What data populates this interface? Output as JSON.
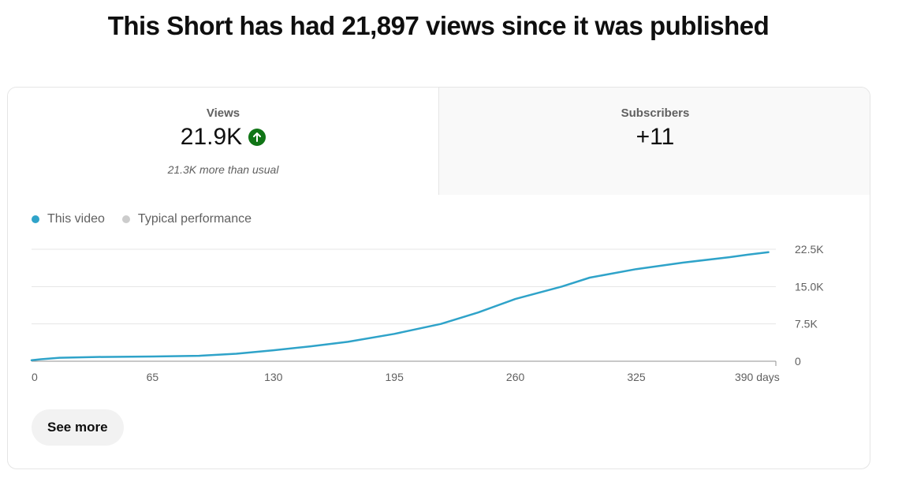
{
  "header": {
    "title": "This Short has had 21,897 views since it was published"
  },
  "metrics": {
    "views": {
      "label": "Views",
      "value": "21.9K",
      "note": "21.3K more than usual",
      "trend_icon": "arrow-up-icon",
      "trend_color": "#107516"
    },
    "subscribers": {
      "label": "Subscribers",
      "value": "+11"
    }
  },
  "legend": {
    "this_video": {
      "label": "This video",
      "color": "#2fa3c9"
    },
    "typical": {
      "label": "Typical performance",
      "color": "#cccccc"
    }
  },
  "actions": {
    "see_more_label": "See more"
  },
  "chart_data": {
    "type": "line",
    "x_unit": "days",
    "xlim": [
      0,
      400
    ],
    "ylim": [
      0,
      22500
    ],
    "x_ticks": [
      0,
      65,
      130,
      195,
      260,
      325,
      390
    ],
    "x_tick_labels": [
      "0",
      "65",
      "130",
      "195",
      "260",
      "325",
      "390 days"
    ],
    "y_ticks": [
      0,
      7500,
      15000,
      22500
    ],
    "y_tick_labels": [
      "0",
      "7.5K",
      "15.0K",
      "22.5K"
    ],
    "grid": true,
    "series": [
      {
        "name": "This video",
        "color": "#2fa3c9",
        "x": [
          0,
          5,
          15,
          35,
          65,
          90,
          110,
          130,
          150,
          170,
          195,
          220,
          240,
          260,
          285,
          300,
          325,
          350,
          375,
          385,
          396
        ],
        "y": [
          200,
          400,
          700,
          850,
          950,
          1100,
          1500,
          2200,
          3000,
          3900,
          5500,
          7500,
          9800,
          12500,
          15000,
          16800,
          18500,
          19800,
          20900,
          21400,
          21897
        ]
      }
    ]
  }
}
